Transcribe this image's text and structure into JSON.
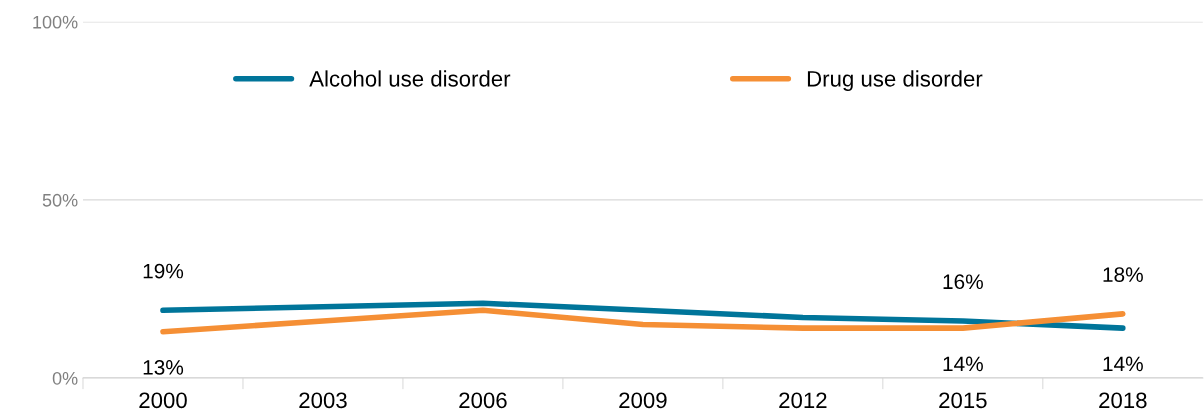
{
  "chart_data": {
    "type": "line",
    "categories": [
      "2000",
      "2003",
      "2006",
      "2009",
      "2012",
      "2015",
      "2018"
    ],
    "series": [
      {
        "name": "Alcohol use disorder",
        "color": "#00759a",
        "values": [
          19,
          20,
          21,
          19,
          17,
          16,
          14
        ],
        "value_labels": [
          "19%",
          null,
          null,
          null,
          null,
          "16%",
          "14%"
        ]
      },
      {
        "name": "Drug use disorder",
        "color": "#f58f35",
        "values": [
          13,
          16,
          19,
          15,
          14,
          14,
          18
        ],
        "value_labels": [
          "13%",
          null,
          null,
          null,
          null,
          "14%",
          "18%"
        ]
      }
    ],
    "ylim": [
      0,
      100
    ],
    "yticks": [
      {
        "value": 0,
        "label": "0%"
      },
      {
        "value": 50,
        "label": "50%"
      },
      {
        "value": 100,
        "label": "100%"
      }
    ],
    "grid": "y",
    "legend": "top",
    "marker": "none",
    "line_style": "solid"
  }
}
